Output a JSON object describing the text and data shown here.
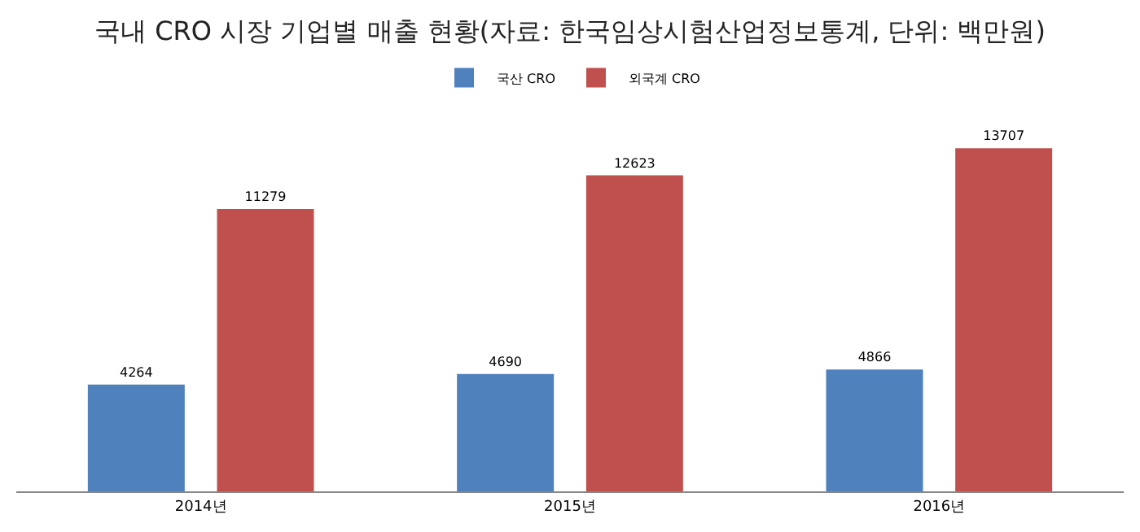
{
  "chart_data": {
    "type": "bar",
    "title": "국내 CRO 시장 기업별 매출 현황(자료: 한국임상시험산업정보통계, 단위: 백만원)",
    "categories": [
      "2014년",
      "2015년",
      "2016년"
    ],
    "series": [
      {
        "name": "국산 CRO",
        "color": "#4f81bd",
        "values": [
          4264,
          4690,
          4866
        ]
      },
      {
        "name": "외국계 CRO",
        "color": "#c0504d",
        "values": [
          11279,
          12623,
          13707
        ]
      }
    ],
    "data_labels": true,
    "legend": "top",
    "grid": false,
    "tick_labels": "x"
  }
}
